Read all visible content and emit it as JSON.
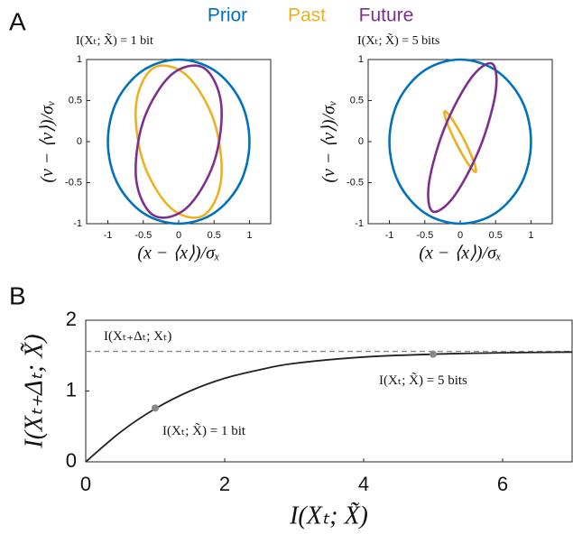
{
  "panels": [
    "A",
    "B"
  ],
  "chart_data": [
    {
      "type": "closed_curve",
      "title": "I(Xₜ; X̃) = 1 bit",
      "xlabel": "(x − ⟨x⟩)/σₓ",
      "ylabel": "(v − ⟨v⟩)/σᵥ",
      "xlim": [
        -1.3,
        1.3
      ],
      "ylim": [
        -1,
        1
      ],
      "xticks": [
        -1,
        -0.5,
        0,
        0.5,
        1
      ],
      "yticks": [
        -1,
        -0.5,
        0,
        0.5,
        1
      ],
      "series": [
        {
          "name": "Prior",
          "color": "#0072bd",
          "x": [
            1,
            0.87,
            0.5,
            0,
            -0.5,
            -0.87,
            -1,
            -0.87,
            -0.5,
            0,
            0.5,
            0.87
          ],
          "values": [
            0,
            0.5,
            0.87,
            1,
            0.87,
            0.5,
            0,
            -0.5,
            -0.87,
            -1,
            -0.87,
            -0.5
          ]
        },
        {
          "name": "Past",
          "color": "#edb120",
          "x": [
            -0.35,
            0.11,
            0.5,
            0.6,
            0.35,
            -0.11,
            -0.5,
            -0.6
          ],
          "values": [
            0.9,
            0.81,
            0.25,
            -0.46,
            -0.9,
            -0.81,
            -0.25,
            0.46
          ]
        },
        {
          "name": "Future",
          "color": "#7e2f8e",
          "x": [
            0.35,
            -0.11,
            -0.5,
            -0.6,
            -0.35,
            0.11,
            0.5,
            0.6
          ],
          "values": [
            0.9,
            0.81,
            0.25,
            -0.46,
            -0.9,
            -0.81,
            -0.25,
            0.46
          ]
        }
      ]
    },
    {
      "type": "closed_curve",
      "title": "I(Xₜ; X̃) = 5 bits",
      "xlabel": "(x − ⟨x⟩)/σₓ",
      "ylabel": "(v − ⟨v⟩)/σᵥ",
      "xlim": [
        -1.3,
        1.3
      ],
      "ylim": [
        -1,
        1
      ],
      "xticks": [
        -1,
        -0.5,
        0,
        0.5,
        1
      ],
      "yticks": [
        -1,
        -0.5,
        0,
        0.5,
        1
      ],
      "series": [
        {
          "name": "Prior",
          "color": "#0072bd",
          "x": [
            1,
            0.87,
            0.5,
            0,
            -0.5,
            -0.87,
            -1,
            -0.87,
            -0.5,
            0,
            0.5,
            0.87
          ],
          "values": [
            0,
            0.5,
            0.87,
            1,
            0.87,
            0.5,
            0,
            -0.5,
            -0.87,
            -1,
            -0.87,
            -0.5
          ]
        },
        {
          "name": "Past",
          "color": "#edb120",
          "x": [
            -0.22,
            -0.12,
            0.05,
            0.19,
            0.22,
            0.12,
            -0.05,
            -0.19
          ],
          "values": [
            0.37,
            0.28,
            0.03,
            -0.24,
            -0.37,
            -0.28,
            -0.03,
            0.24
          ]
        },
        {
          "name": "Future",
          "color": "#7e2f8e",
          "x": [
            0.45,
            0.15,
            -0.22,
            -0.44,
            -0.39,
            -0.09,
            0.28,
            0.5
          ],
          "values": [
            0.95,
            0.77,
            0.17,
            -0.5,
            -0.85,
            -0.67,
            -0.07,
            0.6
          ]
        }
      ]
    },
    {
      "type": "line",
      "xlabel": "I(Xₜ; X̃)",
      "ylabel": "I(Xₜ₊Δₜ; X̃)",
      "xlim": [
        0,
        7
      ],
      "ylim": [
        0,
        2
      ],
      "xticks": [
        0,
        2,
        4,
        6
      ],
      "yticks": [
        0,
        1,
        2
      ],
      "series": [
        {
          "color": "#222222",
          "x": [
            0,
            0.5,
            1,
            1.5,
            2,
            2.5,
            3,
            4,
            5,
            6,
            7
          ],
          "values": [
            0,
            0.42,
            0.75,
            1.0,
            1.18,
            1.3,
            1.39,
            1.48,
            1.52,
            1.54,
            1.55
          ]
        }
      ],
      "hline": {
        "value": 1.56,
        "label": "I(Xₜ₊Δₜ; Xₜ)",
        "color": "#888888"
      },
      "annotations": [
        {
          "x": 1,
          "y": 0.76,
          "label": "I(Xₜ; X̃) = 1 bit"
        },
        {
          "x": 5,
          "y": 1.52,
          "label": "I(Xₜ; X̃) = 5 bits"
        }
      ]
    }
  ]
}
